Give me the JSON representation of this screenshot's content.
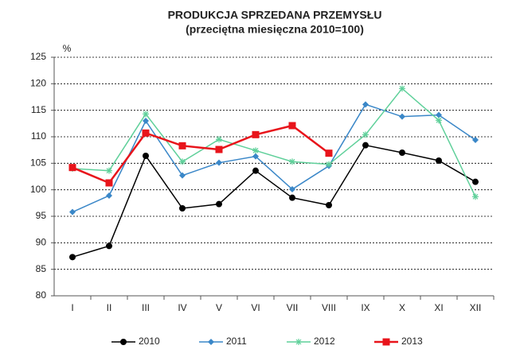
{
  "chart_data": {
    "type": "line",
    "title": "PRODUKCJA SPRZEDANA PRZEMYSŁU",
    "subtitle": "(przeciętna miesięczna 2010=100)",
    "y_label": "%",
    "categories": [
      "I",
      "II",
      "III",
      "IV",
      "V",
      "VI",
      "VII",
      "VIII",
      "IX",
      "X",
      "XI",
      "XII"
    ],
    "series": [
      {
        "name": "2010",
        "color": "#000000",
        "marker": "circle",
        "values": [
          87.3,
          89.4,
          106.4,
          96.5,
          97.3,
          103.6,
          98.5,
          97.1,
          108.4,
          107.0,
          105.5,
          101.5
        ]
      },
      {
        "name": "2011",
        "color": "#3a87c8",
        "marker": "diamond",
        "values": [
          95.8,
          98.9,
          113.0,
          102.7,
          105.1,
          106.3,
          100.1,
          104.5,
          116.1,
          113.8,
          114.1,
          109.4
        ]
      },
      {
        "name": "2012",
        "color": "#5fd09a",
        "marker": "asterisk",
        "values": [
          104.0,
          103.6,
          114.3,
          105.3,
          109.5,
          107.4,
          105.3,
          104.8,
          110.4,
          119.1,
          113.1,
          98.7
        ]
      },
      {
        "name": "2013",
        "color": "#e8141b",
        "marker": "square",
        "values": [
          104.2,
          101.3,
          110.7,
          108.3,
          107.6,
          110.4,
          112.1,
          106.9,
          null,
          null,
          null,
          null
        ]
      }
    ],
    "ylim": [
      80,
      125
    ],
    "yticks": [
      80,
      85,
      90,
      95,
      100,
      105,
      110,
      115,
      120,
      125
    ],
    "grid": true,
    "legend": "bottom"
  }
}
